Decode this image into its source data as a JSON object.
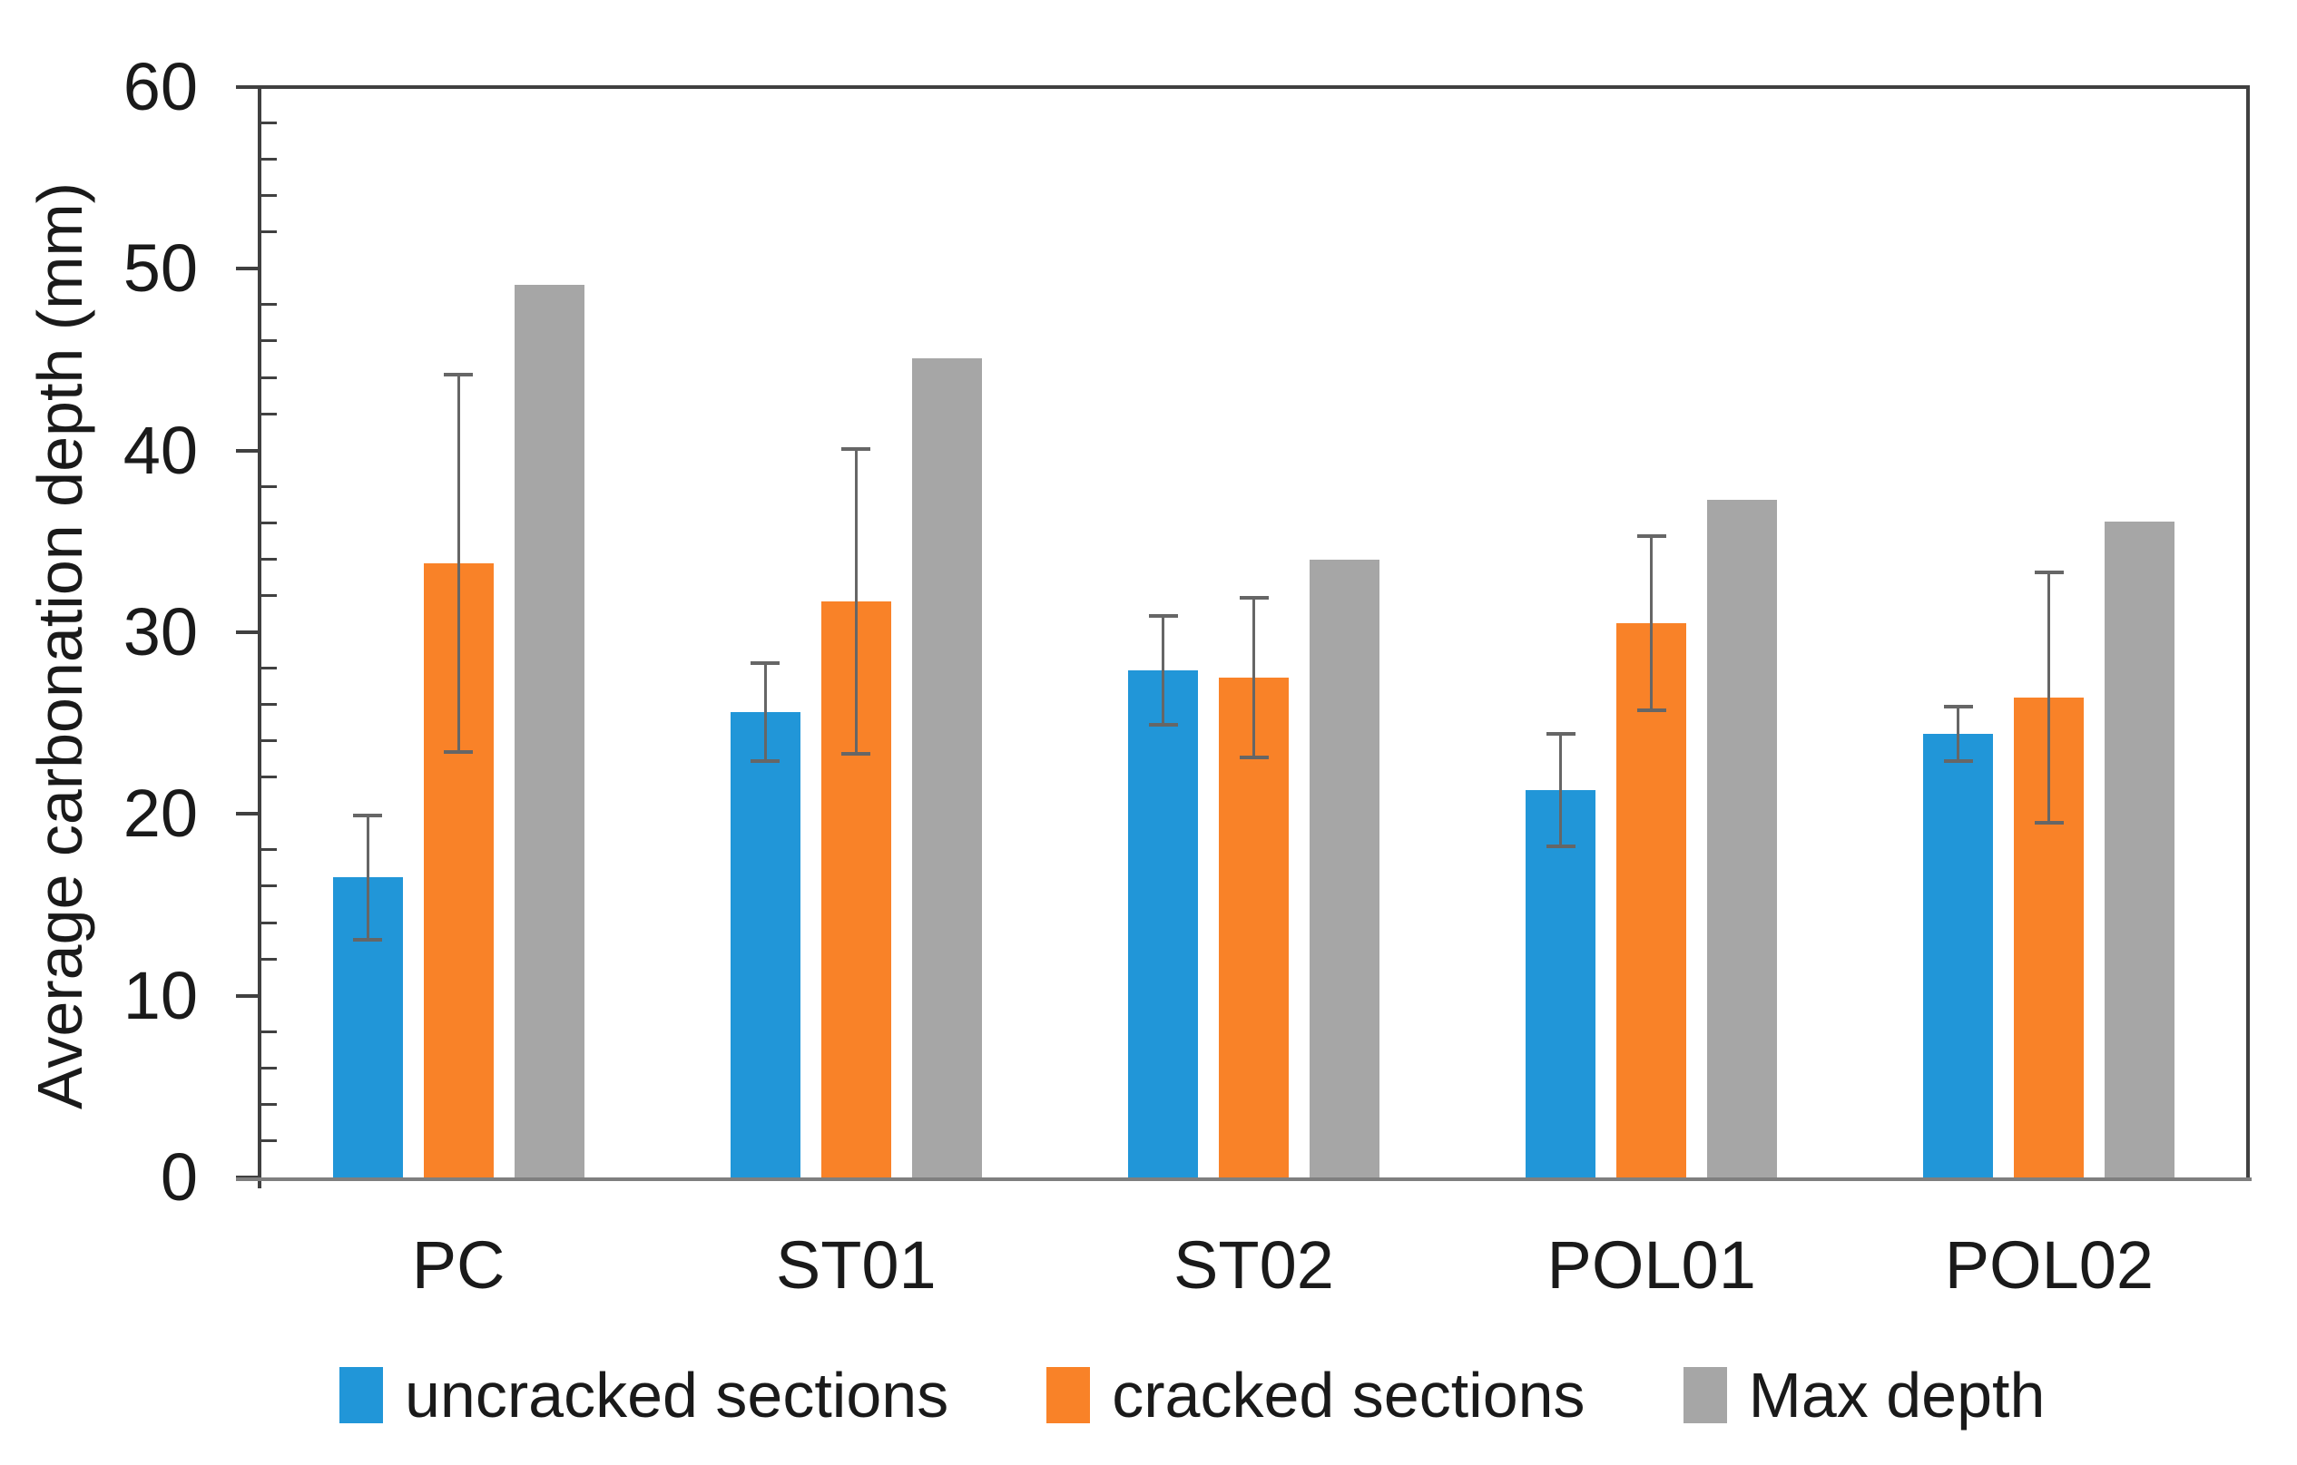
{
  "figure": {
    "background": "#ffffff",
    "text_color": "#1a1a1a"
  },
  "chart_data": {
    "type": "bar",
    "title": "",
    "xlabel": "",
    "ylabel": "Average carbonation depth (mm)",
    "ylim": [
      0,
      60
    ],
    "y_major_tick": 10,
    "y_minor_tick": 2,
    "y_tick_labels": [
      "0",
      "10",
      "20",
      "30",
      "40",
      "50",
      "60"
    ],
    "grid": false,
    "legend_position": "bottom",
    "categories": [
      "PC",
      "ST01",
      "ST02",
      "POL01",
      "POL02"
    ],
    "series": [
      {
        "name": "uncracked sections",
        "color": "#2196D8",
        "values": [
          16.5,
          25.6,
          27.9,
          21.3,
          24.4
        ],
        "error_bars": [
          3.4,
          2.7,
          3.0,
          3.1,
          1.5
        ]
      },
      {
        "name": "cracked sections",
        "color": "#F98228",
        "values": [
          33.8,
          31.7,
          27.5,
          30.5,
          26.4
        ],
        "error_bars": [
          10.4,
          8.4,
          4.4,
          4.8,
          6.9
        ]
      },
      {
        "name": "Max depth",
        "color": "#A6A6A6",
        "values": [
          49.1,
          45.1,
          34.0,
          37.3,
          36.1
        ],
        "error_bars": null
      }
    ],
    "error_bar_color": "#666666",
    "axis_colors": {
      "box": "#404040",
      "bottom_axis": "#7F7F7F"
    }
  }
}
